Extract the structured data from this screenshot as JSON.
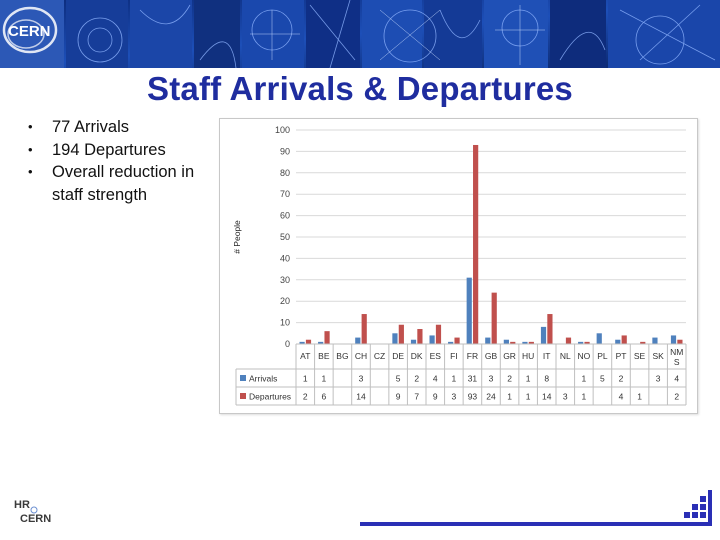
{
  "slide": {
    "title": "Staff Arrivals & Departures",
    "bullets": [
      "77 Arrivals",
      "194 Departures",
      "Overall reduction in staff strength"
    ],
    "bullet_marker": "•",
    "logos": {
      "banner_text": "CERN",
      "footer_line1": "HR",
      "footer_line2": "CERN"
    },
    "colors": {
      "title": "#1f2d9f",
      "arrivals": "#4f81bd",
      "departures": "#c0504d",
      "accent": "#2a2fb5"
    }
  },
  "chart_data": {
    "type": "bar",
    "title": "",
    "xlabel": "",
    "ylabel": "# People",
    "ylim": [
      0,
      100
    ],
    "yticks": [
      0,
      10,
      20,
      30,
      40,
      50,
      60,
      70,
      80,
      90,
      100
    ],
    "categories": [
      "AT",
      "BE",
      "BG",
      "CH",
      "CZ",
      "DE",
      "DK",
      "ES",
      "FI",
      "FR",
      "GB",
      "GR",
      "HU",
      "IT",
      "NL",
      "NO",
      "PL",
      "PT",
      "SE",
      "SK",
      "NM S"
    ],
    "series": [
      {
        "name": "Arrivals",
        "values": [
          1,
          1,
          null,
          3,
          null,
          5,
          2,
          4,
          1,
          31,
          3,
          2,
          1,
          8,
          null,
          1,
          5,
          2,
          null,
          3,
          4
        ],
        "table_text": [
          "1",
          "1",
          "",
          "3",
          "",
          "5",
          "2",
          "4",
          "1",
          "31",
          "3",
          "2",
          "1",
          "8",
          "",
          "1",
          "5",
          "2",
          "",
          "3",
          "4"
        ]
      },
      {
        "name": "Departures",
        "values": [
          2,
          6,
          null,
          14,
          null,
          9,
          7,
          9,
          3,
          93,
          24,
          1,
          1,
          14,
          3,
          1,
          null,
          4,
          1,
          null,
          2
        ],
        "table_text": [
          "2",
          "6",
          "",
          "14",
          "",
          "9",
          "7",
          "9",
          "3",
          "93",
          "24",
          "1",
          "1",
          "14",
          "3",
          "1",
          "",
          "4",
          "1",
          "",
          "2"
        ]
      }
    ],
    "grid": true,
    "legend": "data-table"
  }
}
